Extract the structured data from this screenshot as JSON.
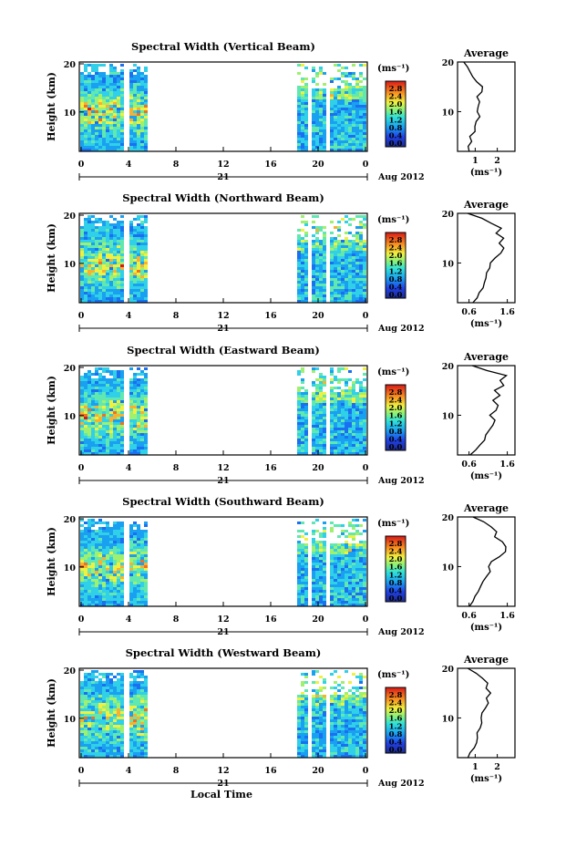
{
  "chart_data": [
    {
      "type": "heatmap",
      "title": "Spectral Width (Vertical Beam)",
      "ylabel": "Height (km)",
      "x_ticks": [
        "0",
        "4",
        "8",
        "12",
        "16",
        "20",
        "0"
      ],
      "y_ticks": [
        "20",
        "10"
      ],
      "date_label": "21",
      "month_label": "Aug 2012",
      "colorbar": {
        "unit": "(ms⁻¹)",
        "ticks": [
          "2.8",
          "2.4",
          "2.0",
          "1.6",
          "1.2",
          "0.8",
          "0.4",
          "0.0"
        ]
      },
      "profile": {
        "title": "Average",
        "xlabel": "(ms⁻¹)",
        "x_ticks": [
          "1",
          "2"
        ],
        "y_ticks": [
          "20",
          "10"
        ],
        "xlim": [
          0.2,
          2.8
        ],
        "ylim": [
          2,
          20
        ],
        "heights": [
          2,
          3,
          4,
          5,
          6,
          7,
          8,
          9,
          10,
          11,
          12,
          13,
          14,
          15,
          16,
          17,
          18,
          19,
          20
        ],
        "values": [
          0.75,
          0.7,
          0.85,
          0.8,
          0.95,
          1.05,
          1.1,
          1.15,
          1.05,
          1.1,
          1.2,
          1.15,
          1.35,
          1.3,
          1.1,
          0.9,
          0.75,
          0.6,
          0.5
        ]
      }
    },
    {
      "type": "heatmap",
      "title": "Spectral Width (Northward Beam)",
      "ylabel": "Height (km)",
      "x_ticks": [
        "0",
        "4",
        "8",
        "12",
        "16",
        "20",
        "0"
      ],
      "y_ticks": [
        "20",
        "10"
      ],
      "date_label": "21",
      "month_label": "Aug 2012",
      "colorbar": {
        "unit": "(ms⁻¹)",
        "ticks": [
          "2.8",
          "2.4",
          "2.0",
          "1.6",
          "1.2",
          "0.8",
          "0.4",
          "0.0"
        ]
      },
      "profile": {
        "title": "Average",
        "xlabel": "(ms⁻¹)",
        "x_ticks": [
          "0.6",
          "1.6"
        ],
        "y_ticks": [
          "20",
          "10"
        ],
        "xlim": [
          0.3,
          1.8
        ],
        "ylim": [
          2,
          20
        ],
        "heights": [
          2,
          3,
          4,
          5,
          6,
          7,
          8,
          9,
          10,
          11,
          12,
          13,
          14,
          15,
          16,
          17,
          18,
          19,
          20
        ],
        "values": [
          0.7,
          0.8,
          0.85,
          0.95,
          1.0,
          1.05,
          1.1,
          1.15,
          1.2,
          1.3,
          1.45,
          1.5,
          1.4,
          1.55,
          1.35,
          1.45,
          1.2,
          0.9,
          0.6
        ]
      }
    },
    {
      "type": "heatmap",
      "title": "Spectral Width (Eastward Beam)",
      "ylabel": "Height (km)",
      "x_ticks": [
        "0",
        "4",
        "8",
        "12",
        "16",
        "20",
        "0"
      ],
      "y_ticks": [
        "20",
        "10"
      ],
      "date_label": "21",
      "month_label": "Aug 2012",
      "colorbar": {
        "unit": "(ms⁻¹)",
        "ticks": [
          "2.8",
          "2.4",
          "2.0",
          "1.6",
          "1.2",
          "0.8",
          "0.4",
          "0.0"
        ]
      },
      "profile": {
        "title": "Average",
        "xlabel": "(ms⁻¹)",
        "x_ticks": [
          "0.6",
          "1.6"
        ],
        "y_ticks": [
          "20",
          "10"
        ],
        "xlim": [
          0.3,
          1.8
        ],
        "ylim": [
          2,
          20
        ],
        "heights": [
          2,
          3,
          4,
          5,
          6,
          7,
          8,
          9,
          10,
          11,
          12,
          13,
          14,
          15,
          16,
          17,
          18,
          19,
          20
        ],
        "values": [
          0.65,
          0.8,
          0.9,
          1.0,
          1.05,
          1.1,
          1.2,
          1.25,
          1.15,
          1.3,
          1.35,
          1.25,
          1.45,
          1.3,
          1.5,
          1.4,
          1.6,
          1.1,
          0.7
        ]
      }
    },
    {
      "type": "heatmap",
      "title": "Spectral Width (Southward Beam)",
      "ylabel": "Height (km)",
      "x_ticks": [
        "0",
        "4",
        "8",
        "12",
        "16",
        "20",
        "0"
      ],
      "y_ticks": [
        "20",
        "10"
      ],
      "date_label": "21",
      "month_label": "Aug 2012",
      "colorbar": {
        "unit": "(ms⁻¹)",
        "ticks": [
          "2.8",
          "2.4",
          "2.0",
          "1.6",
          "1.2",
          "0.8",
          "0.4",
          "0.0"
        ]
      },
      "profile": {
        "title": "Average",
        "xlabel": "(ms⁻¹)",
        "x_ticks": [
          "0.6",
          "1.6"
        ],
        "y_ticks": [
          "20",
          "10"
        ],
        "xlim": [
          0.3,
          1.8
        ],
        "ylim": [
          2,
          20
        ],
        "heights": [
          2,
          3,
          4,
          5,
          6,
          7,
          8,
          9,
          10,
          11,
          12,
          13,
          14,
          15,
          16,
          17,
          18,
          19,
          20
        ],
        "values": [
          0.6,
          0.7,
          0.75,
          0.85,
          0.9,
          1.0,
          1.1,
          1.15,
          1.1,
          1.2,
          1.4,
          1.55,
          1.6,
          1.5,
          1.3,
          1.35,
          1.2,
          0.95,
          0.7
        ]
      }
    },
    {
      "type": "heatmap",
      "title": "Spectral Width (Westward Beam)",
      "ylabel": "Height (km)",
      "x_ticks": [
        "0",
        "4",
        "8",
        "12",
        "16",
        "20",
        "0"
      ],
      "y_ticks": [
        "20",
        "10"
      ],
      "date_label": "21",
      "month_label": "Aug 2012",
      "colorbar": {
        "unit": "(ms⁻¹)",
        "ticks": [
          "2.8",
          "2.4",
          "2.0",
          "1.6",
          "1.2",
          "0.8",
          "0.4",
          "0.0"
        ]
      },
      "profile": {
        "title": "Average",
        "xlabel": "(ms⁻¹)",
        "x_ticks": [
          "1",
          "2"
        ],
        "y_ticks": [
          "20",
          "10"
        ],
        "xlim": [
          0.2,
          2.8
        ],
        "ylim": [
          2,
          20
        ],
        "heights": [
          2,
          3,
          4,
          5,
          6,
          7,
          8,
          9,
          10,
          11,
          12,
          13,
          14,
          15,
          16,
          17,
          18,
          19,
          20
        ],
        "values": [
          0.7,
          0.8,
          0.9,
          1.0,
          1.05,
          1.1,
          1.2,
          1.3,
          1.25,
          1.35,
          1.5,
          1.6,
          1.45,
          1.7,
          1.5,
          1.6,
          1.3,
          1.0,
          0.7
        ]
      }
    }
  ],
  "xlabel": "Local Time"
}
